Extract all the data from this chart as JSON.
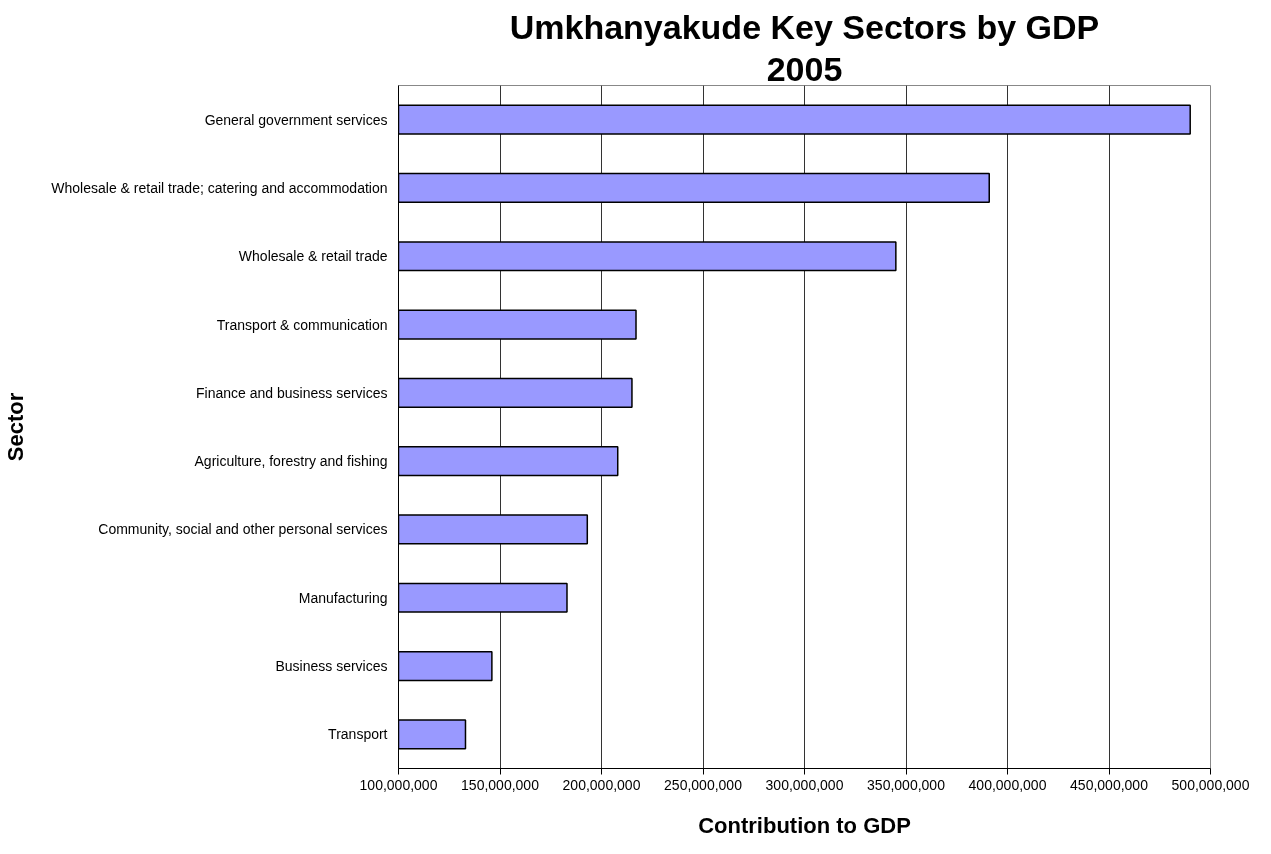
{
  "chart_data": {
    "type": "bar",
    "orientation": "horizontal",
    "title": "Umkhanyakude Key Sectors by GDP",
    "subtitle": "2005",
    "xlabel": "Contribution to GDP",
    "ylabel": "Sector",
    "categories": [
      "General government services",
      "Wholesale & retail trade; catering and accommodation",
      "Wholesale & retail trade",
      "Transport & communication",
      "Finance and business services",
      "Agriculture, forestry and fishing",
      "Community, social and other personal services",
      "Manufacturing",
      "Business services",
      "Transport"
    ],
    "series": [
      {
        "color": "#9999ff",
        "values": [
          490000000,
          391000000,
          345000000,
          217000000,
          215000000,
          208000000,
          193000000,
          183000000,
          146000000,
          133000000
        ]
      }
    ],
    "xlim": [
      100000000,
      500000000
    ],
    "xticks": [
      {
        "value": 100000000,
        "label": "100,000,000"
      },
      {
        "value": 150000000,
        "label": "150,000,000"
      },
      {
        "value": 200000000,
        "label": "200,000,000"
      },
      {
        "value": 250000000,
        "label": "250,000,000"
      },
      {
        "value": 300000000,
        "label": "300,000,000"
      },
      {
        "value": 350000000,
        "label": "350,000,000"
      },
      {
        "value": 400000000,
        "label": "400,000,000"
      },
      {
        "value": 450000000,
        "label": "450,000,000"
      },
      {
        "value": 500000000,
        "label": "500,000,000"
      }
    ],
    "grid": "x"
  }
}
